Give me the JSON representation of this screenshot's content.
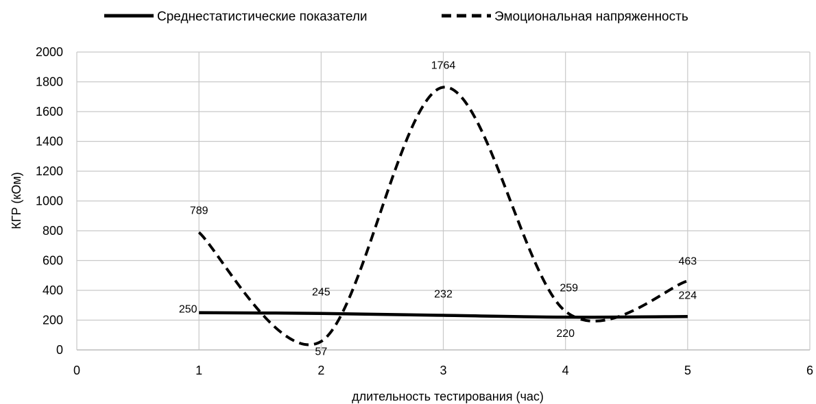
{
  "chart_data": {
    "type": "line",
    "title": "",
    "xlabel": "длительность тестирования (час)",
    "ylabel": "КГР (кОм)",
    "xlim": [
      0,
      6
    ],
    "ylim": [
      0,
      2000
    ],
    "x_ticks": [
      0,
      1,
      2,
      3,
      4,
      5,
      6
    ],
    "y_ticks": [
      0,
      200,
      400,
      600,
      800,
      1000,
      1200,
      1400,
      1600,
      1800,
      2000
    ],
    "grid": true,
    "legend_position": "top",
    "smooth": true,
    "series": [
      {
        "name": "Среднестатистические показатели",
        "style": "solid",
        "color": "#000000",
        "x": [
          1,
          2,
          3,
          4,
          5
        ],
        "y": [
          250,
          245,
          232,
          220,
          224
        ],
        "labels": [
          "250",
          "245",
          "232",
          "220",
          "224"
        ]
      },
      {
        "name": "Эмоциональная напряженность",
        "style": "dashed",
        "color": "#000000",
        "x": [
          1,
          2,
          3,
          4,
          5
        ],
        "y": [
          789,
          57,
          1764,
          259,
          463
        ],
        "labels": [
          "789",
          "57",
          "1764",
          "259",
          "463"
        ]
      }
    ]
  }
}
